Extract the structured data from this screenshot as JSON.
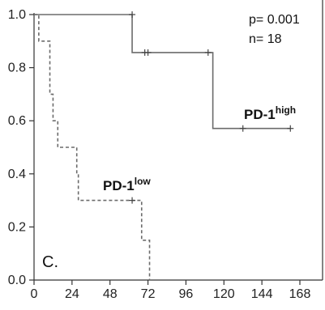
{
  "chart_data": {
    "type": "line",
    "title": "",
    "xlabel": "",
    "ylabel": "",
    "xlim": [
      0,
      168
    ],
    "ylim": [
      0,
      1.0
    ],
    "x_ticks": [
      0,
      24,
      48,
      72,
      96,
      120,
      144,
      168
    ],
    "y_ticks": [
      0.0,
      0.2,
      0.4,
      0.6,
      0.8,
      1.0
    ],
    "y_tick_labels": [
      "0.0",
      "0.2",
      "0.4",
      "0.6",
      "0.8",
      "1.0"
    ],
    "grid": false,
    "annotations": {
      "p_value": "p= 0.001",
      "n": "n= 18",
      "panel_label": "C."
    },
    "series": [
      {
        "name": "PD-1",
        "name_superscript": "high",
        "line_style": "solid",
        "color": "#6b6b6b",
        "steps": [
          [
            0,
            1.0
          ],
          [
            62,
            0.857
          ],
          [
            113,
            0.571
          ],
          [
            162,
            0.571
          ]
        ],
        "censor_marks": [
          [
            62,
            1.0
          ],
          [
            70,
            0.857
          ],
          [
            72,
            0.857
          ],
          [
            110,
            0.857
          ],
          [
            132,
            0.571
          ],
          [
            162,
            0.571
          ]
        ]
      },
      {
        "name": "PD-1",
        "name_superscript": "low",
        "line_style": "dashed",
        "color": "#6b6b6b",
        "steps": [
          [
            0,
            1.0
          ],
          [
            3,
            0.9
          ],
          [
            10,
            0.7
          ],
          [
            12,
            0.6
          ],
          [
            15,
            0.5
          ],
          [
            27,
            0.4
          ],
          [
            28,
            0.3
          ],
          [
            68,
            0.15
          ],
          [
            73,
            0.0
          ],
          [
            74,
            0.0
          ]
        ],
        "censor_marks": [
          [
            62,
            0.3
          ]
        ]
      }
    ]
  }
}
